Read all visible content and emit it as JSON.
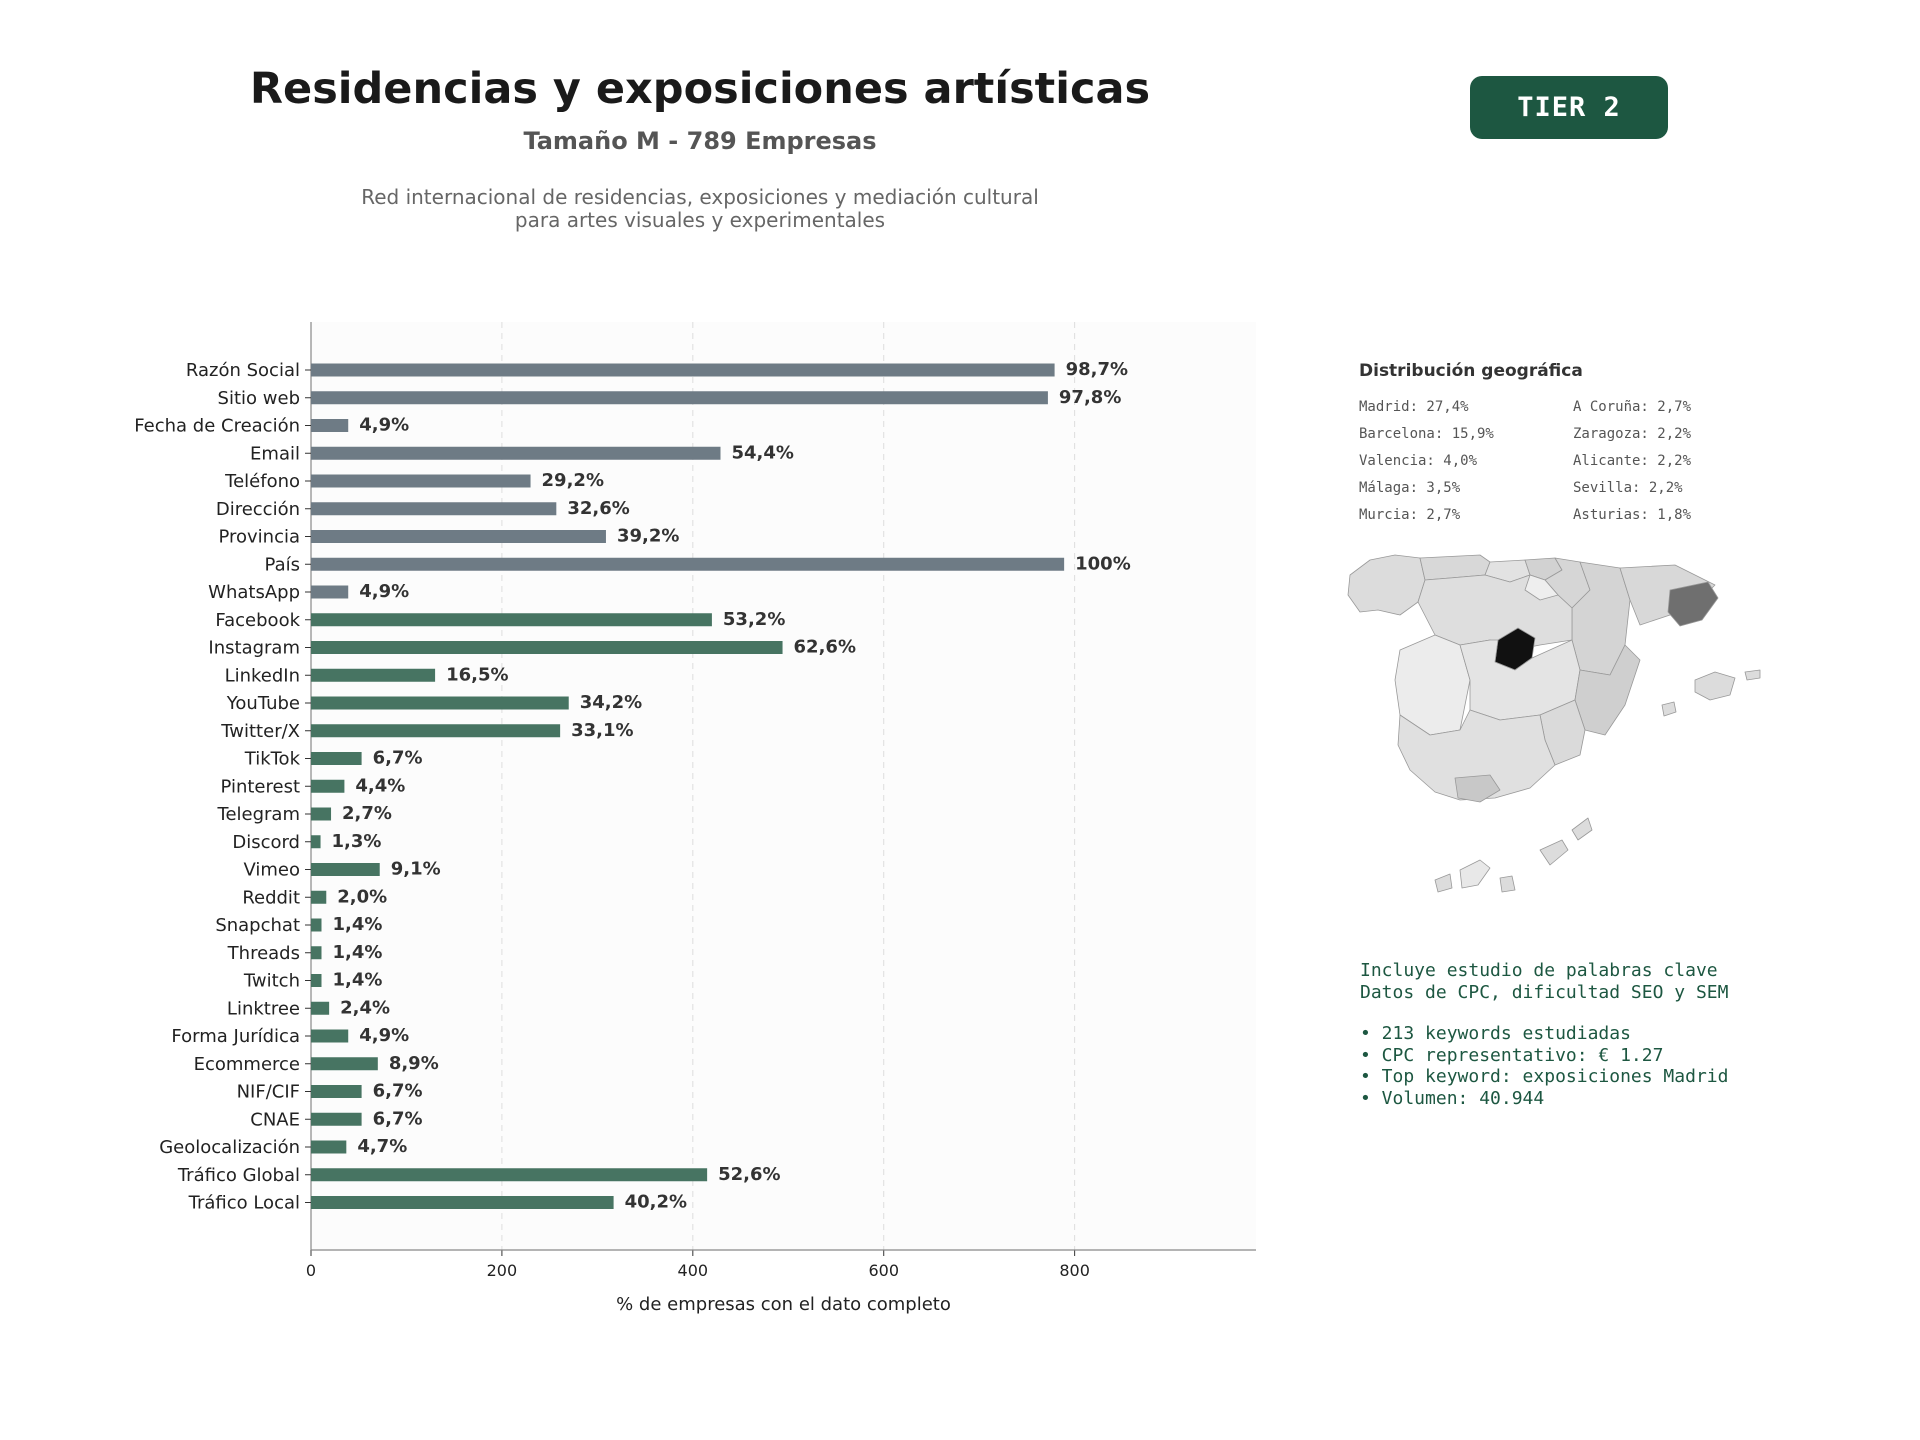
{
  "header": {
    "title": "Residencias y exposiciones artísticas",
    "subtitle": "Tamaño M - 789 Empresas",
    "description_line1": "Red internacional de residencias, exposiciones y mediación cultural",
    "description_line2": "para artes visuales y experimentales",
    "tier_label": "TIER 2"
  },
  "colors": {
    "contact_bar": "#6e7b85",
    "social_bar": "#477462",
    "accent": "#1d5741"
  },
  "chart_data": {
    "type": "bar",
    "orientation": "horizontal",
    "xlabel": "% de empresas con el dato completo",
    "xlim": [
      0,
      990
    ],
    "xticks": [
      0,
      200,
      400,
      600,
      800
    ],
    "grid": "x, dashed",
    "total_companies": 789,
    "categories": [
      "Razón Social",
      "Sitio web",
      "Fecha de Creación",
      "Email",
      "Teléfono",
      "Dirección",
      "Provincia",
      "País",
      "WhatsApp",
      "Facebook",
      "Instagram",
      "LinkedIn",
      "YouTube",
      "Twitter/X",
      "TikTok",
      "Pinterest",
      "Telegram",
      "Discord",
      "Vimeo",
      "Reddit",
      "Snapchat",
      "Threads",
      "Twitch",
      "Linktree",
      "Forma Jurídica",
      "Ecommerce",
      "NIF/CIF",
      "CNAE",
      "Geolocalización",
      "Tráfico Global",
      "Tráfico Local"
    ],
    "values": [
      779,
      772,
      39,
      429,
      230,
      257,
      309,
      789,
      39,
      420,
      494,
      130,
      270,
      261,
      53,
      35,
      21,
      10,
      72,
      16,
      11,
      11,
      11,
      19,
      39,
      70,
      53,
      53,
      37,
      415,
      317
    ],
    "labels": [
      "98,7%",
      "97,8%",
      "4,9%",
      "54,4%",
      "29,2%",
      "32,6%",
      "39,2%",
      "100%",
      "4,9%",
      "53,2%",
      "62,6%",
      "16,5%",
      "34,2%",
      "33,1%",
      "6,7%",
      "4,4%",
      "2,7%",
      "1,3%",
      "9,1%",
      "2,0%",
      "1,4%",
      "1,4%",
      "1,4%",
      "2,4%",
      "4,9%",
      "8,9%",
      "6,7%",
      "6,7%",
      "4,7%",
      "52,6%",
      "40,2%"
    ],
    "groups": [
      "contact",
      "contact",
      "contact",
      "contact",
      "contact",
      "contact",
      "contact",
      "contact",
      "contact",
      "social",
      "social",
      "social",
      "social",
      "social",
      "social",
      "social",
      "social",
      "social",
      "social",
      "social",
      "social",
      "social",
      "social",
      "social",
      "social",
      "social",
      "social",
      "social",
      "social",
      "social",
      "social"
    ]
  },
  "geo": {
    "title": "Distribución geográfica",
    "items": [
      "Madrid: 27,4%",
      "A Coruña: 2,7%",
      "Barcelona: 15,9%",
      "Zaragoza: 2,2%",
      "Valencia: 4,0%",
      "Alicante: 2,2%",
      "Málaga: 3,5%",
      "Sevilla: 2,2%",
      "Murcia: 2,7%",
      "Asturias: 1,8%"
    ]
  },
  "info": {
    "line1": "Incluye estudio de palabras clave",
    "line2": "Datos de CPC, dificultad SEO y SEM",
    "bullet1": "• 213 keywords estudiadas",
    "bullet2": "• CPC representativo: € 1.27",
    "bullet3": "• Top keyword: exposiciones Madrid",
    "bullet4": "• Volumen: 40.944"
  }
}
